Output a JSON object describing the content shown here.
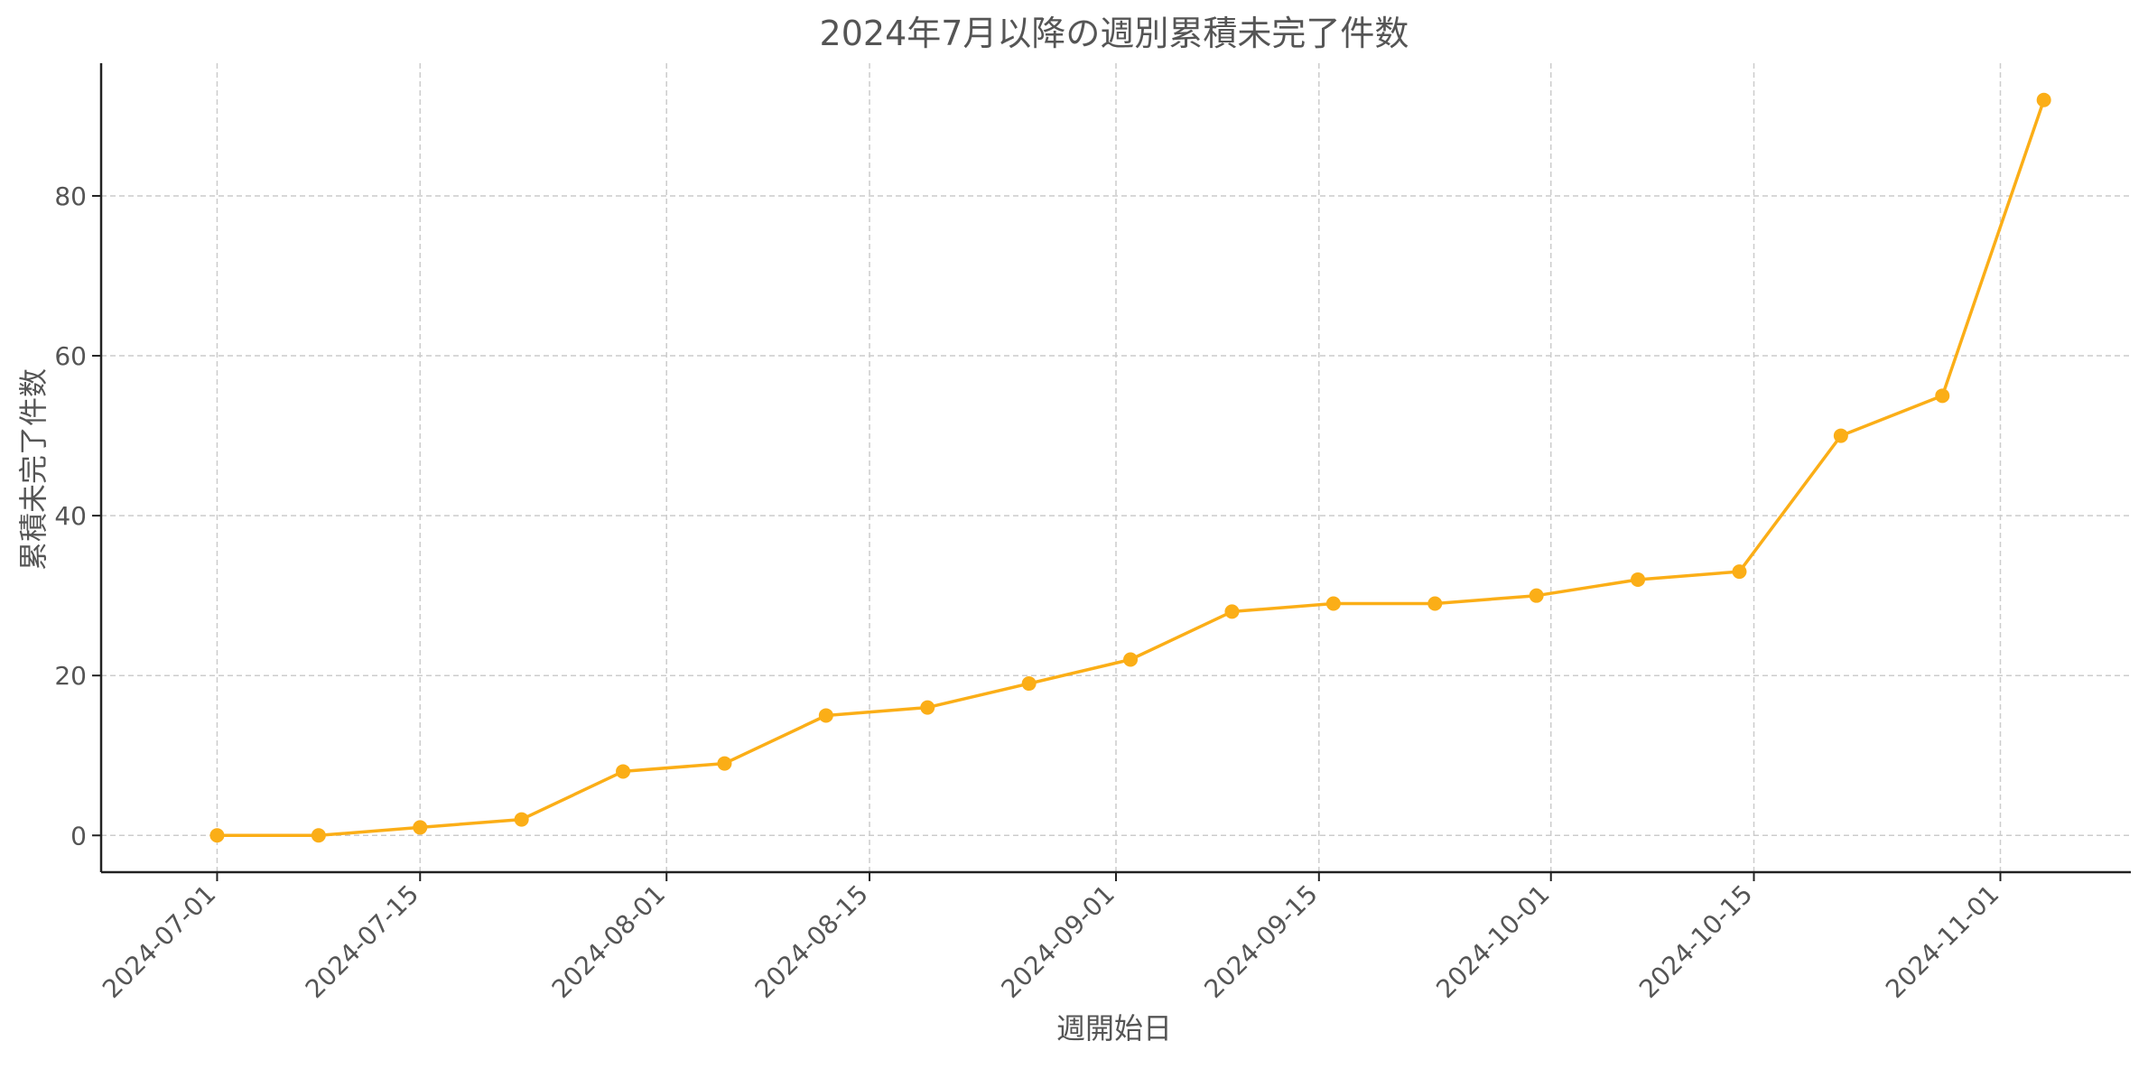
{
  "chart_data": {
    "type": "line",
    "title": "2024年7月以降の週別累積未完了件数",
    "xlabel": "週開始日",
    "ylabel": "累積未完了件数",
    "x": [
      "2024-07-01",
      "2024-07-08",
      "2024-07-15",
      "2024-07-22",
      "2024-07-29",
      "2024-08-05",
      "2024-08-12",
      "2024-08-19",
      "2024-08-26",
      "2024-09-02",
      "2024-09-09",
      "2024-09-16",
      "2024-09-23",
      "2024-09-30",
      "2024-10-07",
      "2024-10-14",
      "2024-10-21",
      "2024-10-28",
      "2024-11-04"
    ],
    "series": [
      {
        "values": [
          0,
          0,
          1,
          2,
          8,
          9,
          15,
          16,
          19,
          22,
          28,
          29,
          29,
          30,
          32,
          33,
          50,
          55,
          92
        ]
      }
    ],
    "x_ticks": [
      "2024-07-01",
      "2024-07-15",
      "2024-08-01",
      "2024-08-15",
      "2024-09-01",
      "2024-09-15",
      "2024-10-01",
      "2024-10-15",
      "2024-11-01"
    ],
    "y_ticks": [
      0,
      20,
      40,
      60,
      80
    ],
    "xlim": [
      "2024-06-23",
      "2024-11-10"
    ],
    "ylim": [
      -4.6,
      96.6
    ],
    "grid": true,
    "line_color": "#FBAE17",
    "grid_color": "#CCCCCC",
    "text_color": "#555555"
  }
}
